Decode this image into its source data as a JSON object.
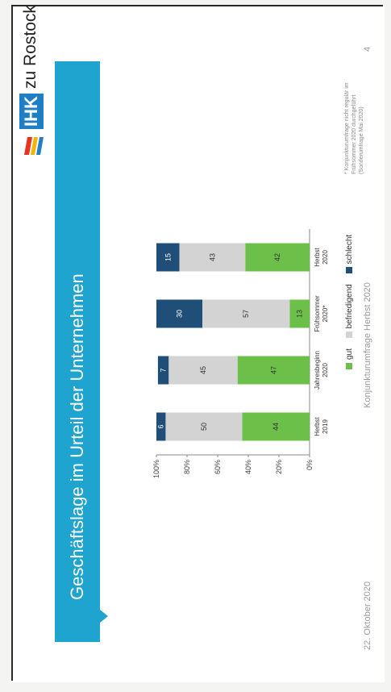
{
  "slide": {
    "title": "Geschäftslage im Urteil der Unternehmen",
    "logo_abbrev": "IHK",
    "logo_text": "zu Rostock",
    "footnote": "* Konjunkturumfrage nicht regulär im Frühsommer 2020 durchgeführt (Sonderumfrage Mai 2020)",
    "footer_date": "22. Oktober 2020",
    "footer_center": "Konjunkturumfrage Herbst 2020",
    "page_number": "4",
    "colors": {
      "brand_blue": "#1fa3cf",
      "gut": "#6cc04a",
      "befriedigend": "#d3d3d3",
      "schlecht": "#1f4e79"
    }
  },
  "chart_data": {
    "type": "bar",
    "stacked": true,
    "categories": [
      "Herbst 2019",
      "Jahresbeginn 2020",
      "Frühsommer 2020*",
      "Herbst 2020"
    ],
    "series": [
      {
        "name": "gut",
        "values": [
          44,
          47,
          13,
          42
        ]
      },
      {
        "name": "befriedigend",
        "values": [
          50,
          45,
          57,
          43
        ]
      },
      {
        "name": "schlecht",
        "values": [
          6,
          7,
          30,
          15
        ]
      }
    ],
    "yticks": [
      "0%",
      "20%",
      "40%",
      "60%",
      "80%",
      "100%"
    ],
    "ylim": [
      0,
      100
    ],
    "legend_position": "bottom"
  }
}
